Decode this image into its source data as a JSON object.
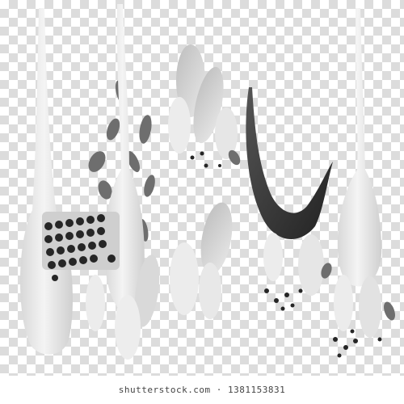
{
  "image": {
    "subject": "",
    "palette": {
      "checker_light": "#ffffff",
      "checker_dark": "#dcdcdc",
      "garlic": "#ededed",
      "garlic_shade": "#d2d2d2",
      "chili": "#2f2f2f",
      "parsley": "#6e6e6e",
      "peppercorn": "#262626"
    }
  },
  "watermark": {
    "text": "shutterstock.com · 1381153831"
  }
}
